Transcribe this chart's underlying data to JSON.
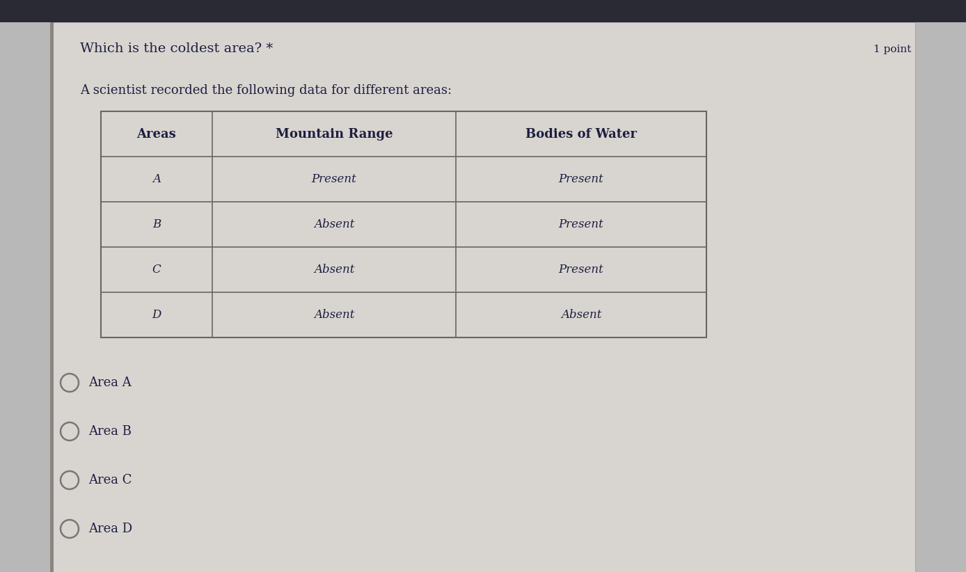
{
  "question": "Which is the coldest area? *",
  "point_label": "1 point",
  "subtitle": "A scientist recorded the following data for different areas:",
  "table_headers": [
    "Areas",
    "Mountain Range",
    "Bodies of Water"
  ],
  "table_rows": [
    [
      "A",
      "Present",
      "Present"
    ],
    [
      "B",
      "Absent",
      "Present"
    ],
    [
      "C",
      "Absent",
      "Present"
    ],
    [
      "D",
      "Absent",
      "Absent"
    ]
  ],
  "options": [
    "Area A",
    "Area B",
    "Area C",
    "Area D"
  ],
  "top_bar_color": "#2a2a35",
  "bg_color": "#b8b8b8",
  "paper_color": "#d8d5d0",
  "table_bg": "#dddad5",
  "header_bg": "#ccc9c4",
  "table_cell_bg": "#d8d5d0",
  "text_color": "#1e1e40",
  "border_color": "#666666",
  "radio_color": "#777777",
  "question_fontsize": 14,
  "subtitle_fontsize": 13,
  "table_header_fontsize": 13,
  "table_cell_fontsize": 12,
  "option_fontsize": 13,
  "point_fontsize": 11
}
